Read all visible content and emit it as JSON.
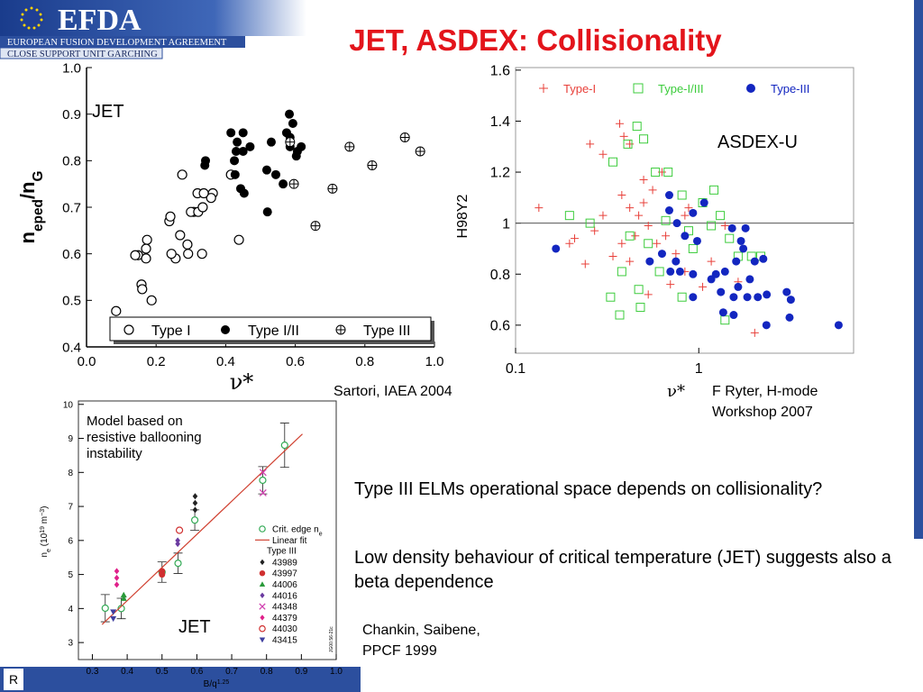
{
  "slide": {
    "logo": "EFDA",
    "org": "EUROPEAN FUSION DEVELOPMENT AGREEMENT",
    "unit": "CLOSE SUPPORT UNIT GARCHING",
    "title": "JET, ASDEX: Collisionality",
    "bullets": [
      "Type III ELMs operational space depends on collisionality?",
      "Low density behaviour of critical temperature (JET) suggests also a beta dependence"
    ],
    "citations": [
      [
        "Sartori, IAEA 2004"
      ],
      [
        "F Ryter, H-mode",
        "Workshop 2007"
      ],
      [
        "Chankin, Saibene,",
        "PPCF 1999"
      ]
    ],
    "footer": "R"
  },
  "chart_data": [
    {
      "type": "scatter",
      "annotation": [
        "JET"
      ],
      "xlabel": [
        {
          "text": "ν*"
        }
      ],
      "ylabel": [
        {
          "text": "n"
        },
        {
          "text": "eped",
          "script": "sub"
        },
        {
          "text": "/n"
        },
        {
          "text": "G",
          "script": "sub"
        }
      ],
      "xlim": [
        0,
        1
      ],
      "ylim": [
        0.4,
        1
      ],
      "xticks": [
        {
          "value": 0,
          "label": "0.0"
        },
        0.2,
        0.4,
        0.6,
        0.8,
        {
          "value": 1,
          "label": "1.0"
        }
      ],
      "yticks": [
        0.4,
        0.5,
        0.6,
        0.7,
        0.8,
        0.9,
        {
          "value": 1,
          "label": "1.0"
        }
      ],
      "legend": "bottom",
      "series": [
        {
          "name": "Type I",
          "color": "#000000",
          "marker": "circle-open",
          "x": [
            0.085,
            0.148,
            0.14,
            0.171,
            0.174,
            0.171,
            0.158,
            0.16,
            0.187,
            0.238,
            0.241,
            0.275,
            0.269,
            0.29,
            0.292,
            0.256,
            0.244,
            0.319,
            0.308,
            0.3,
            0.321,
            0.334,
            0.332,
            0.363,
            0.358,
            0.415,
            0.438,
            0.337
          ],
          "y": [
            0.477,
            0.597,
            0.597,
            0.59,
            0.63,
            0.611,
            0.534,
            0.524,
            0.5,
            0.67,
            0.68,
            0.77,
            0.64,
            0.62,
            0.6,
            0.59,
            0.6,
            0.73,
            0.69,
            0.69,
            0.69,
            0.7,
            0.6,
            0.73,
            0.72,
            0.77,
            0.63,
            0.73
          ]
        },
        {
          "name": "Type I/II",
          "color": "#000000",
          "marker": "dot",
          "x": [
            0.34,
            0.342,
            0.415,
            0.433,
            0.45,
            0.43,
            0.45,
            0.47,
            0.425,
            0.427,
            0.443,
            0.453,
            0.531,
            0.518,
            0.544,
            0.565,
            0.583,
            0.593,
            0.575,
            0.585,
            0.606,
            0.585,
            0.617,
            0.603,
            0.52
          ],
          "y": [
            0.79,
            0.8,
            0.86,
            0.84,
            0.86,
            0.82,
            0.82,
            0.83,
            0.8,
            0.77,
            0.74,
            0.73,
            0.84,
            0.78,
            0.77,
            0.75,
            0.9,
            0.88,
            0.86,
            0.85,
            0.82,
            0.83,
            0.83,
            0.81,
            0.69
          ]
        },
        {
          "name": "Type III",
          "color": "#000000",
          "marker": "circle-plus",
          "x": [
            0.585,
            0.596,
            0.707,
            0.658,
            0.756,
            0.821,
            0.915,
            0.959
          ],
          "y": [
            0.84,
            0.75,
            0.74,
            0.66,
            0.83,
            0.79,
            0.85,
            0.82
          ]
        }
      ]
    },
    {
      "type": "scatter",
      "xscale": "log",
      "annotation": [
        "ASDEX-U"
      ],
      "xlabel": [
        {
          "text": "ν*"
        }
      ],
      "ylabel": [
        {
          "text": "H98Y2"
        }
      ],
      "xlim": [
        0.1,
        7
      ],
      "ylim": [
        0.49,
        1.61
      ],
      "xticks": [
        0.1,
        1
      ],
      "yticks": [
        0.6,
        0.8,
        1,
        1.2,
        1.4,
        1.6
      ],
      "hline": 1,
      "legend": "top",
      "series": [
        {
          "name": "Type-I",
          "color": "#e8403a",
          "marker": "plus",
          "x": [
            0.134,
            0.197,
            0.24,
            0.255,
            0.3,
            0.37,
            0.39,
            0.42,
            0.38,
            0.42,
            0.47,
            0.5,
            0.53,
            0.56,
            0.45,
            0.38,
            0.34,
            0.59,
            0.66,
            0.75,
            0.84,
            0.7,
            1.05,
            1.39,
            1.17,
            1.64,
            2.02,
            0.3,
            0.27,
            0.21,
            0.5,
            0.63,
            0.84,
            0.42,
            0.53,
            0.88
          ],
          "y": [
            1.06,
            0.92,
            0.84,
            1.31,
            1.27,
            1.39,
            1.34,
            1.31,
            1.11,
            1.06,
            1.03,
            1.08,
            0.99,
            1.13,
            0.95,
            0.92,
            0.87,
            0.92,
            0.95,
            0.88,
            0.81,
            0.76,
            0.75,
            0.99,
            0.85,
            0.77,
            0.57,
            1.03,
            0.97,
            0.94,
            1.17,
            1.2,
            1.03,
            0.85,
            0.72,
            1.06
          ]
        },
        {
          "name": "Type-I/III",
          "color": "#3ccc3c",
          "marker": "square-open",
          "x": [
            0.197,
            0.255,
            0.34,
            0.46,
            0.41,
            0.5,
            0.58,
            0.68,
            0.81,
            1.05,
            1.17,
            1.31,
            1.47,
            1.64,
            1.94,
            2.18,
            0.42,
            0.53,
            0.38,
            0.47,
            0.33,
            0.37,
            0.48,
            0.81,
            1.39,
            0.66,
            0.88,
            0.93,
            0.61,
            1.21
          ],
          "y": [
            1.03,
            1.0,
            1.24,
            1.38,
            1.31,
            1.33,
            1.2,
            1.2,
            1.11,
            1.08,
            0.99,
            1.03,
            0.94,
            0.87,
            0.87,
            0.87,
            0.95,
            0.92,
            0.81,
            0.74,
            0.71,
            0.64,
            0.67,
            0.71,
            0.62,
            1.01,
            0.97,
            0.9,
            0.81,
            1.13
          ]
        },
        {
          "name": "Type-III",
          "color": "#1326c0",
          "marker": "dot",
          "x": [
            0.166,
            0.69,
            0.69,
            0.93,
            0.76,
            0.84,
            0.98,
            0.54,
            0.7,
            0.79,
            0.93,
            1.17,
            1.24,
            1.39,
            1.52,
            1.8,
            1.7,
            1.6,
            1.75,
            2.02,
            2.25,
            1.9,
            1.64,
            1.55,
            1.84,
            2.1,
            2.35,
            1.32,
            0.93,
            1.36,
            1.55,
            2.34,
            3.02,
            3.18,
            3.13,
            5.8,
            1.07,
            0.63,
            0.75
          ],
          "y": [
            0.9,
            1.11,
            1.05,
            1.04,
            1.0,
            0.95,
            0.93,
            0.85,
            0.81,
            0.81,
            0.8,
            0.78,
            0.8,
            0.81,
            0.98,
            0.98,
            0.93,
            0.85,
            0.9,
            0.85,
            0.86,
            0.78,
            0.75,
            0.71,
            0.71,
            0.71,
            0.72,
            0.73,
            0.71,
            0.65,
            0.64,
            0.6,
            0.73,
            0.7,
            0.63,
            0.6,
            1.08,
            0.88,
            0.85
          ]
        }
      ]
    },
    {
      "type": "scatter",
      "annotation": [
        "Model based on",
        "resistive ballooning",
        "instability"
      ],
      "annotation2": "JET",
      "stamp": "JG00.56-21c",
      "xlabel": [
        {
          "text": "B/q"
        },
        {
          "text": "1.25",
          "script": "sup"
        }
      ],
      "ylabel": [
        {
          "text": "n"
        },
        {
          "text": "e",
          "script": "sub"
        },
        {
          "text": " (10"
        },
        {
          "text": "19",
          "script": "sup"
        },
        {
          "text": " m"
        },
        {
          "text": "−3",
          "script": "sup"
        },
        {
          "text": ")"
        }
      ],
      "xlim": [
        0.26,
        1
      ],
      "ylim": [
        2.5,
        10.1
      ],
      "xticks": [
        0.3,
        0.4,
        0.5,
        0.6,
        0.7,
        0.8,
        0.9,
        {
          "value": 1,
          "label": "1.0"
        }
      ],
      "yticks": [
        3,
        4,
        5,
        6,
        7,
        8,
        9,
        10
      ],
      "legend": "right",
      "legend_heading": "Type III",
      "series": [
        {
          "name": [
            {
              "text": "Crit. edge n"
            },
            {
              "text": "e",
              "script": "sub"
            }
          ],
          "color": "#33aa55",
          "marker": "circle-open",
          "x": [
            0.337,
            0.383,
            0.5,
            0.546,
            0.594,
            0.789,
            0.852
          ],
          "y": [
            4.01,
            4.0,
            5.07,
            5.33,
            6.6,
            7.77,
            8.8
          ],
          "errors": [
            0.4,
            0.3,
            0.3,
            0.3,
            0.3,
            0.4,
            0.65
          ]
        },
        {
          "name": "Linear fit",
          "color": "#d04030",
          "marker": "line",
          "x": [
            0.328,
            0.903
          ],
          "y": [
            3.53,
            9.13
          ]
        },
        {
          "name": "43989",
          "color": "#222222",
          "marker": "diamond",
          "heading": true,
          "x": [
            0.595,
            0.595,
            0.595
          ],
          "y": [
            6.9,
            7.1,
            7.3
          ]
        },
        {
          "name": "43997",
          "color": "#d03030",
          "marker": "dot",
          "x": [
            0.5,
            0.5
          ],
          "y": [
            5.0,
            5.1
          ]
        },
        {
          "name": "44006",
          "color": "#2a9a3a",
          "marker": "triangle",
          "x": [
            0.39,
            0.39
          ],
          "y": [
            4.3,
            4.4
          ]
        },
        {
          "name": "44016",
          "color": "#6a3aa0",
          "marker": "diamond",
          "x": [
            0.545,
            0.545
          ],
          "y": [
            5.9,
            6.0
          ]
        },
        {
          "name": "44348",
          "color": "#d040b0",
          "marker": "x",
          "x": [
            0.79,
            0.79
          ],
          "y": [
            7.4,
            8.0
          ]
        },
        {
          "name": "44379",
          "color": "#e0208a",
          "marker": "diamond",
          "x": [
            0.37,
            0.37,
            0.37
          ],
          "y": [
            4.7,
            4.9,
            5.1
          ]
        },
        {
          "name": "44030",
          "color": "#d03030",
          "marker": "circle-open",
          "x": [
            0.55
          ],
          "y": [
            6.3
          ]
        },
        {
          "name": "43415",
          "color": "#4040a0",
          "marker": "triangle-down",
          "x": [
            0.36,
            0.36
          ],
          "y": [
            3.7,
            3.9
          ]
        }
      ]
    }
  ]
}
